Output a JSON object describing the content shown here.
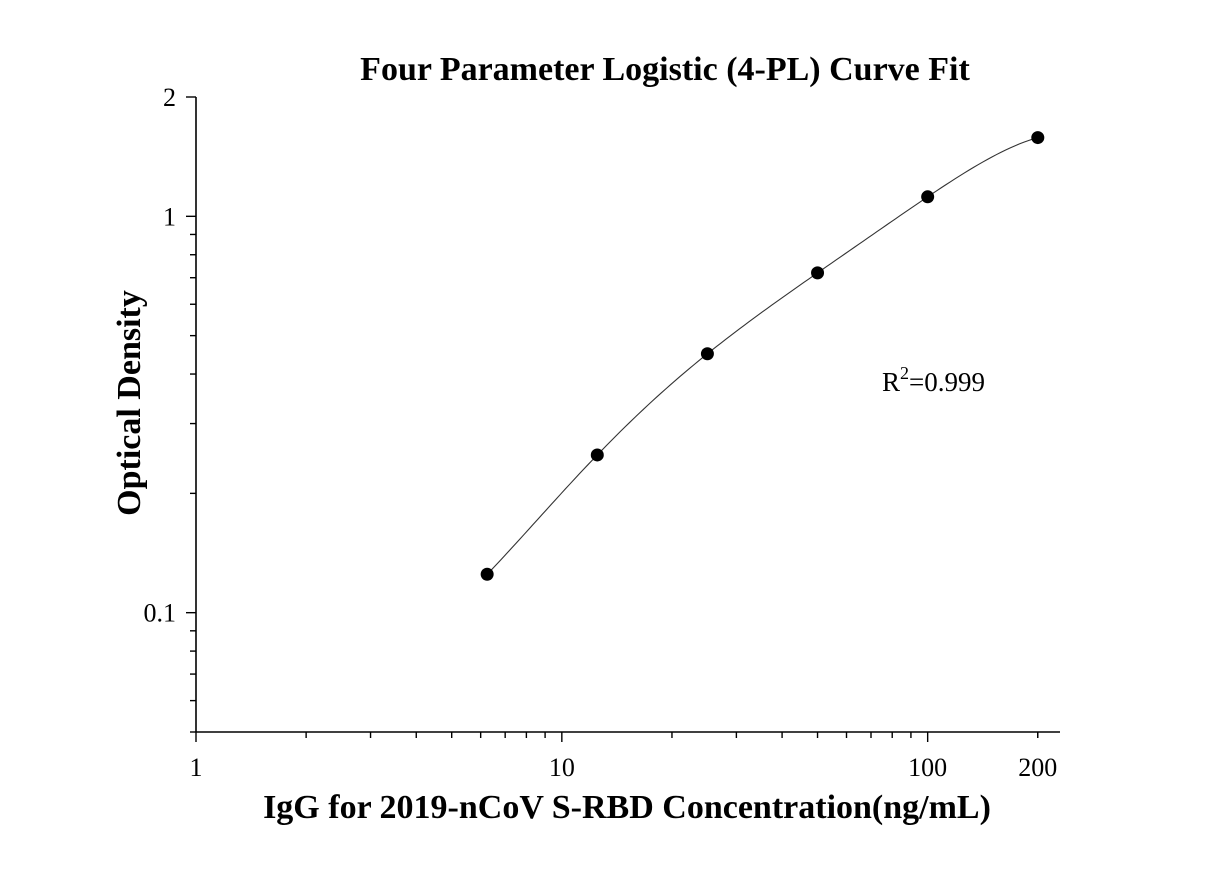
{
  "chart_data": {
    "type": "scatter",
    "title": "Four Parameter Logistic (4-PL) Curve Fit",
    "xlabel": "IgG for 2019-nCoV S-RBD Concentration(ng/mL)",
    "ylabel": "Optical Density",
    "x_scale": "log",
    "y_scale": "log",
    "xlim": [
      1,
      230
    ],
    "ylim": [
      0.05,
      2
    ],
    "x_ticks_major": [
      1,
      10,
      100,
      200
    ],
    "x_tick_labels": [
      "1",
      "10",
      "100",
      "200"
    ],
    "y_ticks_major": [
      0.1,
      1,
      2
    ],
    "y_tick_labels": [
      "0.1",
      "1",
      "2"
    ],
    "grid": false,
    "legend": "none",
    "series": [
      {
        "x": [
          6.25,
          12.5,
          25,
          50,
          100,
          200
        ],
        "y": [
          0.125,
          0.25,
          0.45,
          0.72,
          1.12,
          1.58
        ]
      }
    ],
    "annotation": {
      "base": "R",
      "sup": "2",
      "rest": "=0.999"
    },
    "colors": {
      "points": "#000000",
      "curve": "#333333"
    }
  }
}
